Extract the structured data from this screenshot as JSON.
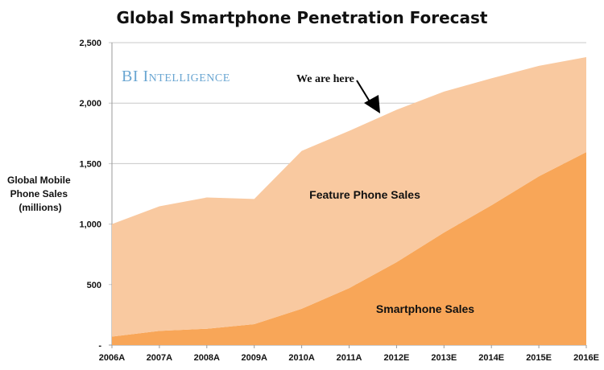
{
  "chart_data": {
    "type": "area",
    "stacked": true,
    "title": "Global Smartphone Penetration Forecast",
    "ylabel": [
      "Global Mobile",
      "Phone Sales",
      "(millions)"
    ],
    "xlabel": "",
    "categories": [
      "2006A",
      "2007A",
      "2008A",
      "2009A",
      "2010A",
      "2011A",
      "2012E",
      "2013E",
      "2014E",
      "2015E",
      "2016E"
    ],
    "series": [
      {
        "name": "Smartphone Sales",
        "color": "#f8a658",
        "values": [
          70,
          117,
          135,
          173,
          300,
          470,
          685,
          930,
          1155,
          1395,
          1595
        ]
      },
      {
        "name": "Feature Phone Sales",
        "color": "#f9c9a0",
        "values": [
          930,
          1030,
          1085,
          1035,
          1305,
          1300,
          1260,
          1165,
          1050,
          913,
          785
        ]
      }
    ],
    "totals": [
      1000,
      1147,
      1220,
      1208,
      1605,
      1770,
      1945,
      2095,
      2205,
      2308,
      2380
    ],
    "ylim": [
      0,
      2500
    ],
    "yticks": [
      0,
      500,
      1000,
      1500,
      2000,
      2500
    ],
    "ytick_labels": [
      "-",
      "500",
      "1,000",
      "1,500",
      "2,000",
      "2,500"
    ],
    "grid": true,
    "annotations": {
      "arrow_text": "We are here",
      "arrow_target": "2011A-2012E"
    },
    "watermark": "BI Intelligence"
  }
}
